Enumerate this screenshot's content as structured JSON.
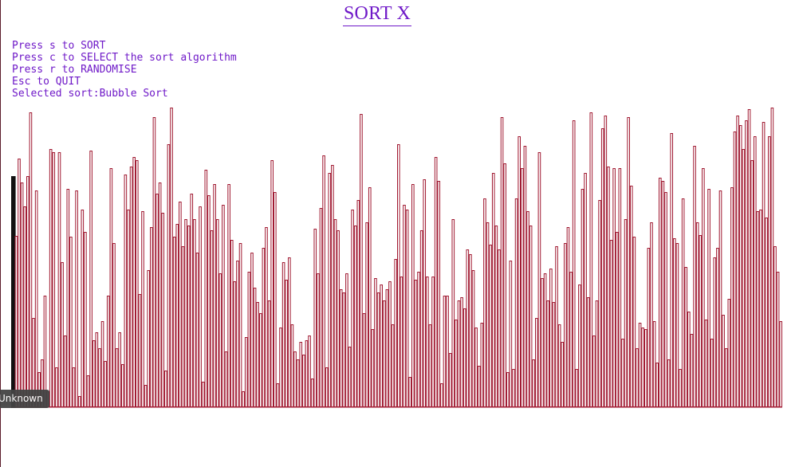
{
  "title": "SORT X",
  "instructions": [
    "Press s to SORT",
    "Press c to SELECT the sort algorithm",
    "Press r to RANDOMISE",
    "Esc to QUIT",
    "Selected sort:Bubble Sort"
  ],
  "tooltip": "Unknown",
  "colors": {
    "title": "#6f19c8",
    "bar_stroke": "#a01830",
    "highlight_bar": "#111111"
  },
  "chart_data": {
    "type": "bar",
    "baseline": 0,
    "highlight_index": 0,
    "values": [
      289,
      215,
      312,
      282,
      252,
      290,
      370,
      112,
      272,
      44,
      60,
      140,
      20,
      324,
      320,
      50,
      320,
      182,
      90,
      274,
      214,
      50,
      272,
      14,
      248,
      220,
      40,
      322,
      84,
      94,
      74,
      108,
      58,
      140,
      300,
      206,
      74,
      94,
      54,
      292,
      248,
      302,
      314,
      310,
      142,
      246,
      28,
      172,
      226,
      364,
      268,
      282,
      244,
      46,
      330,
      376,
      214,
      230,
      258,
      202,
      236,
      228,
      268,
      236,
      194,
      252,
      32,
      298,
      266,
      222,
      280,
      236,
      168,
      254,
      70,
      280,
      210,
      158,
      184,
      206,
      20,
      88,
      170,
      194,
      150,
      132,
      118,
      200,
      226,
      134,
      310,
      270,
      30,
      100,
      182,
      160,
      188,
      104,
      70,
      60,
      82,
      66,
      84,
      90,
      36,
      224,
      168,
      250,
      316,
      50,
      294,
      304,
      236,
      222,
      148,
      144,
      168,
      76,
      248,
      228,
      260,
      368,
      118,
      232,
      276,
      98,
      162,
      144,
      154,
      134,
      148,
      158,
      104,
      186,
      330,
      164,
      254,
      248,
      38,
      280,
      160,
      170,
      222,
      286,
      164,
      104,
      164,
      314,
      284,
      30,
      140,
      140,
      68,
      236,
      110,
      134,
      138,
      124,
      198,
      192,
      172,
      100,
      52,
      106,
      262,
      232,
      204,
      294,
      228,
      198,
      364,
      306,
      44,
      184,
      48,
      262,
      340,
      300,
      328,
      246,
      228,
      60,
      112,
      320,
      162,
      168,
      134,
      174,
      132,
      202,
      104,
      82,
      206,
      226,
      170,
      360,
      48,
      154,
      274,
      294,
      138,
      370,
      90,
      134,
      260,
      350,
      366,
      302,
      210,
      300,
      220,
      300,
      86,
      236,
      364,
      278,
      214,
      74,
      106,
      100,
      98,
      200,
      232,
      108,
      56,
      288,
      284,
      270,
      60,
      344,
      212,
      206,
      48,
      262,
      176,
      120,
      92,
      328,
      232,
      216,
      300,
      110,
      274,
      86,
      188,
      200,
      272,
      116,
      74,
      136,
      276,
      346,
      366,
      354,
      324,
      360,
      374,
      310,
      340,
      246,
      248,
      358,
      238,
      340,
      376,
      202,
      170,
      108
    ]
  }
}
